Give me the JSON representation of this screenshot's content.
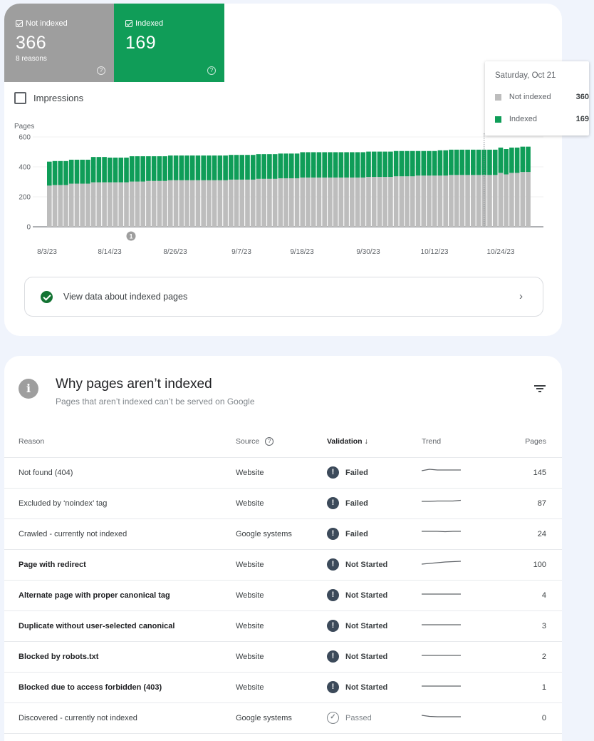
{
  "metrics": {
    "not_indexed": {
      "label": "Not indexed",
      "value": "366",
      "sub": "8 reasons",
      "color": "#9e9e9e"
    },
    "indexed": {
      "label": "Indexed",
      "value": "169",
      "color": "#109d58"
    }
  },
  "impressions_label": "Impressions",
  "tooltip": {
    "date": "Saturday, Oct 21",
    "rows": [
      {
        "label": "Not indexed",
        "value": "360",
        "color": "#bdbdbd"
      },
      {
        "label": "Indexed",
        "value": "169",
        "color": "#0f9d58"
      }
    ]
  },
  "view_link": {
    "label": "View data about indexed pages",
    "chevron": "›"
  },
  "chart_data": {
    "type": "bar",
    "stacked": true,
    "title": "",
    "xlabel": "",
    "ylabel": "Pages",
    "ylim": [
      0,
      600
    ],
    "yticks": [
      0,
      200,
      400,
      600
    ],
    "grid": true,
    "xtick_labels": [
      "8/3/23",
      "8/14/23",
      "8/26/23",
      "9/7/23",
      "9/18/23",
      "9/30/23",
      "10/12/23",
      "10/24/23"
    ],
    "annotation": {
      "label": "1",
      "near": "8/17/23"
    },
    "highlighted_date": "Saturday, Oct 21",
    "legend": [
      "Not indexed",
      "Indexed"
    ],
    "series": [
      {
        "name": "Not indexed",
        "color": "#bdbdbd",
        "values": [
          275,
          279,
          279,
          279,
          288,
          288,
          288,
          288,
          297,
          297,
          297,
          297,
          297,
          297,
          297,
          302,
          302,
          302,
          306,
          306,
          306,
          306,
          311,
          311,
          311,
          311,
          311,
          311,
          311,
          311,
          311,
          311,
          311,
          315,
          315,
          315,
          315,
          315,
          320,
          320,
          320,
          320,
          324,
          324,
          324,
          324,
          329,
          329,
          329,
          329,
          329,
          329,
          329,
          329,
          329,
          329,
          329,
          329,
          333,
          333,
          333,
          333,
          333,
          337,
          337,
          337,
          337,
          342,
          342,
          342,
          342,
          342,
          342,
          346,
          346,
          346,
          346,
          346,
          346,
          346,
          346,
          346,
          360,
          350,
          360,
          360,
          366,
          366
        ]
      },
      {
        "name": "Indexed",
        "color": "#0f9d58",
        "values": [
          160,
          160,
          160,
          160,
          160,
          160,
          160,
          160,
          169,
          169,
          169,
          165,
          165,
          165,
          165,
          169,
          169,
          169,
          165,
          165,
          165,
          165,
          165,
          165,
          165,
          165,
          165,
          165,
          165,
          165,
          165,
          165,
          165,
          165,
          165,
          165,
          165,
          165,
          165,
          165,
          165,
          165,
          165,
          165,
          165,
          165,
          169,
          169,
          169,
          169,
          169,
          169,
          169,
          169,
          169,
          169,
          169,
          169,
          169,
          169,
          169,
          169,
          169,
          169,
          169,
          169,
          169,
          164,
          164,
          164,
          164,
          169,
          169,
          169,
          169,
          169,
          169,
          169,
          169,
          169,
          169,
          169,
          169,
          169,
          169,
          169,
          169,
          169
        ]
      }
    ]
  },
  "why": {
    "title": "Why pages aren’t indexed",
    "subtitle": "Pages that aren’t indexed can’t be served on Google",
    "columns": {
      "reason": "Reason",
      "source": "Source",
      "validation": "Validation",
      "trend": "Trend",
      "pages": "Pages"
    },
    "sort_arrow": "↓",
    "rows": [
      {
        "reason": "Not found (404)",
        "source": "Website",
        "validation": "Failed",
        "status": "fail",
        "pages": "145",
        "bold": false,
        "trend": [
          4,
          2,
          3,
          3,
          3,
          3
        ]
      },
      {
        "reason": "Excluded by ‘noindex’ tag",
        "source": "Website",
        "validation": "Failed",
        "status": "fail",
        "pages": "87",
        "bold": false,
        "trend": [
          4,
          4,
          3.5,
          3.5,
          3.5,
          2.5
        ]
      },
      {
        "reason": "Crawled - currently not indexed",
        "source": "Google systems",
        "validation": "Failed",
        "status": "fail",
        "pages": "24",
        "bold": false,
        "trend": [
          3,
          3,
          3,
          3.5,
          3,
          3
        ]
      },
      {
        "reason": "Page with redirect",
        "source": "Website",
        "validation": "Not Started",
        "status": "fail",
        "pages": "100",
        "bold": true,
        "trend": [
          6,
          5,
          4,
          3,
          2.5,
          2
        ]
      },
      {
        "reason": "Alternate page with proper canonical tag",
        "source": "Website",
        "validation": "Not Started",
        "status": "fail",
        "pages": "4",
        "bold": true,
        "trend": [
          5,
          5,
          5,
          5,
          5,
          5
        ]
      },
      {
        "reason": "Duplicate without user-selected canonical",
        "source": "Website",
        "validation": "Not Started",
        "status": "fail",
        "pages": "3",
        "bold": true,
        "trend": [
          5,
          5,
          5,
          5,
          5,
          5
        ]
      },
      {
        "reason": "Blocked by robots.txt",
        "source": "Website",
        "validation": "Not Started",
        "status": "fail",
        "pages": "2",
        "bold": true,
        "trend": [
          5,
          5,
          5,
          5,
          5,
          5
        ]
      },
      {
        "reason": "Blocked due to access forbidden (403)",
        "source": "Website",
        "validation": "Not Started",
        "status": "fail",
        "pages": "1",
        "bold": true,
        "trend": [
          5,
          5,
          5,
          5,
          5,
          5
        ]
      },
      {
        "reason": "Discovered - currently not indexed",
        "source": "Google systems",
        "validation": "Passed",
        "status": "pass",
        "pages": "0",
        "bold": false,
        "trend": [
          3,
          4.5,
          5,
          5,
          5,
          5
        ]
      }
    ]
  }
}
